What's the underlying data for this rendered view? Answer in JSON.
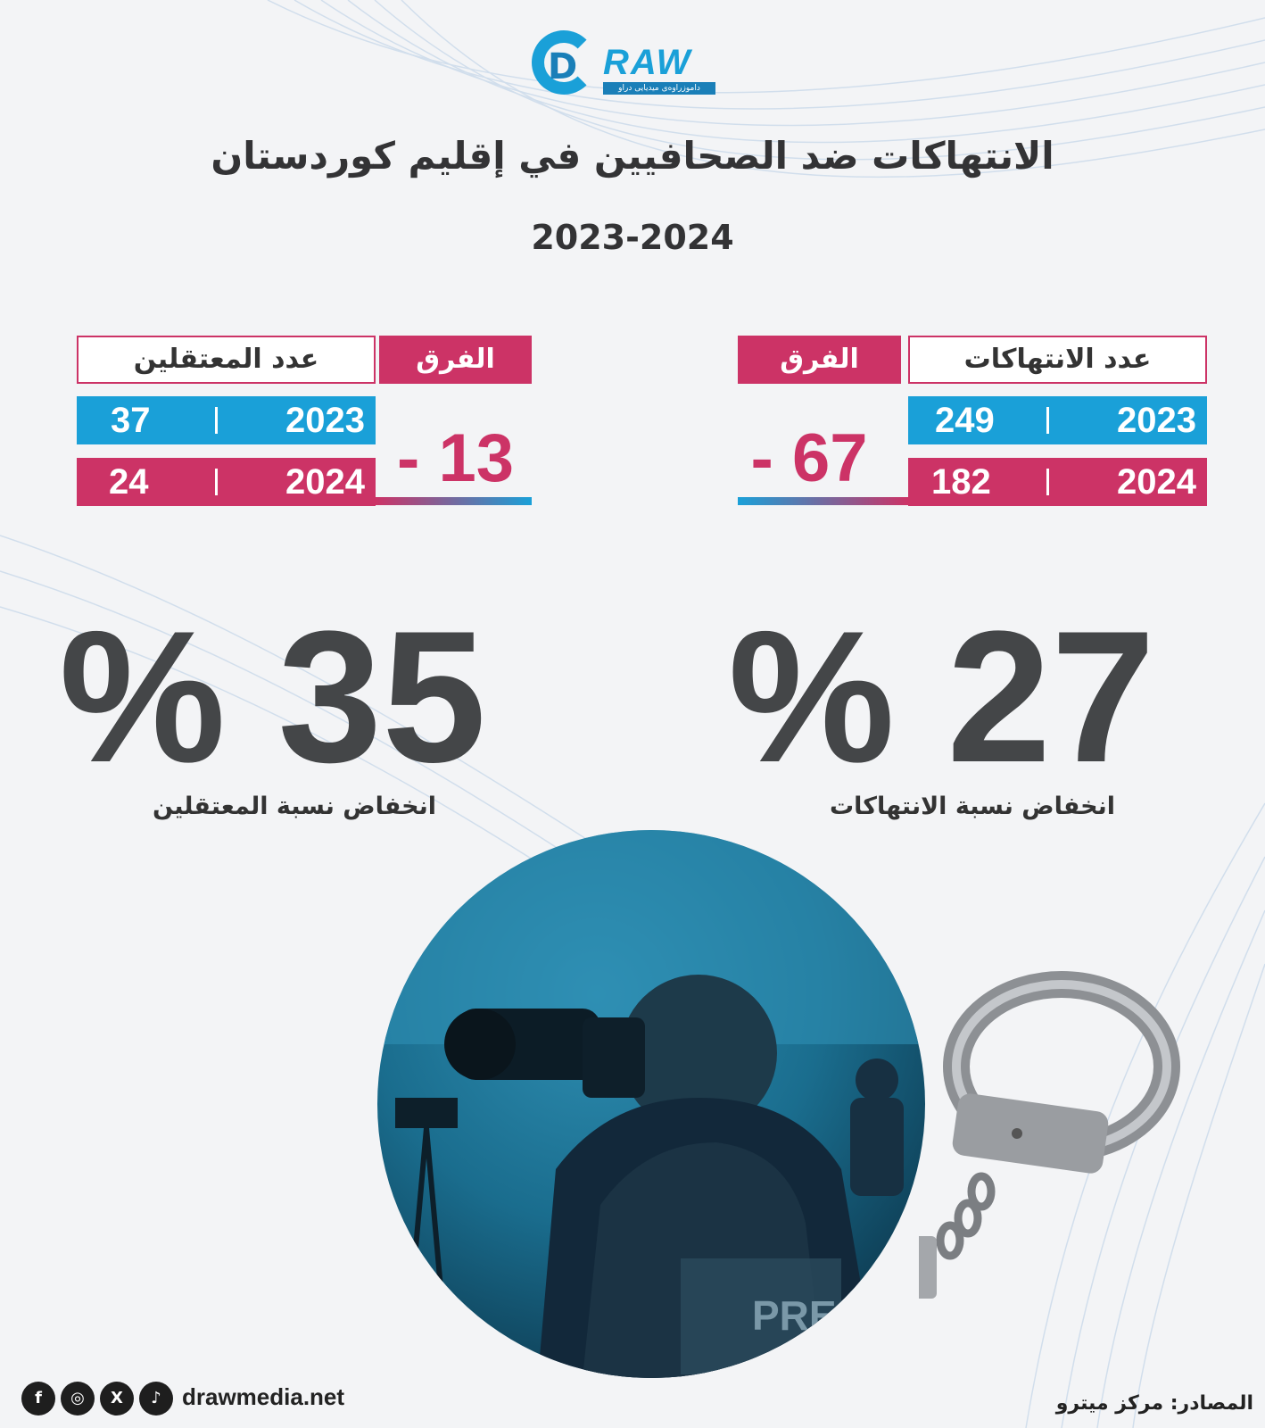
{
  "logo": {
    "word": "RAW",
    "tagline": "داموزراوەی میدیایی دراو"
  },
  "title": "الانتهاكات ضد الصحافيين في إقليم كوردستان",
  "subtitle": "2023-2024",
  "violations": {
    "header": "عدد الانتهاكات",
    "diff_header": "الفرق",
    "rows": [
      {
        "year": "2023",
        "value": "249"
      },
      {
        "year": "2024",
        "value": "182"
      }
    ],
    "difference": "67 -",
    "percent": "27 %",
    "caption": "انخفاض نسبة الانتهاكات"
  },
  "detainees": {
    "header": "عدد المعتقلين",
    "diff_header": "الفرق",
    "rows": [
      {
        "year": "2023",
        "value": "37"
      },
      {
        "year": "2024",
        "value": "24"
      }
    ],
    "difference": "13 -",
    "percent": "35 %",
    "caption": "انخفاض نسبة المعتقلين"
  },
  "photo": {
    "vest_text": "PRESS"
  },
  "footer": {
    "social": [
      "facebook-icon",
      "instagram-icon",
      "x-icon",
      "tiktok-icon"
    ],
    "social_glyphs": [
      "f",
      "◎",
      "X",
      "♪"
    ],
    "website": "drawmedia.net",
    "source": "المصادر: مركز ميترو"
  },
  "colors": {
    "blue": "#1aa0d8",
    "pink": "#cc3366",
    "dark": "#444648"
  }
}
